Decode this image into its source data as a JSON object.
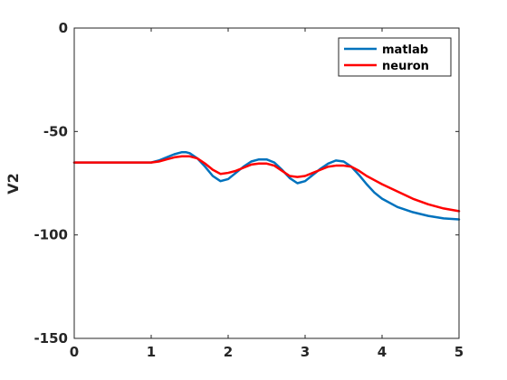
{
  "chart_data": {
    "type": "line",
    "title": "",
    "xlabel": "",
    "ylabel": "V2",
    "xlim": [
      0,
      5
    ],
    "ylim": [
      -150,
      0
    ],
    "xticks": [
      0,
      1,
      2,
      3,
      4,
      5
    ],
    "yticks": [
      -150,
      -100,
      -50,
      0
    ],
    "grid": false,
    "legend_position": "top-right",
    "series": [
      {
        "name": "matlab",
        "color": "#0072BD",
        "x": [
          0,
          0.5,
          1.0,
          1.1,
          1.2,
          1.3,
          1.4,
          1.45,
          1.5,
          1.6,
          1.7,
          1.8,
          1.9,
          2.0,
          2.1,
          2.2,
          2.3,
          2.4,
          2.5,
          2.6,
          2.7,
          2.8,
          2.9,
          3.0,
          3.1,
          3.2,
          3.3,
          3.4,
          3.5,
          3.6,
          3.7,
          3.8,
          3.9,
          4.0,
          4.2,
          4.4,
          4.6,
          4.8,
          5.0
        ],
        "y": [
          -65,
          -65,
          -65,
          -64,
          -62.5,
          -61,
          -60,
          -60,
          -60.5,
          -63,
          -67,
          -71.5,
          -74,
          -73,
          -70,
          -67,
          -64.5,
          -63.5,
          -63.5,
          -65,
          -68.5,
          -72.5,
          -75,
          -74,
          -71,
          -68,
          -65.5,
          -64,
          -64.5,
          -67,
          -71,
          -75.5,
          -79.5,
          -82.5,
          -86.5,
          -89,
          -90.8,
          -92,
          -92.5
        ]
      },
      {
        "name": "neuron",
        "color": "#FF0000",
        "x": [
          0,
          0.5,
          1.0,
          1.1,
          1.2,
          1.3,
          1.4,
          1.5,
          1.6,
          1.7,
          1.8,
          1.9,
          2.0,
          2.1,
          2.2,
          2.3,
          2.4,
          2.5,
          2.6,
          2.7,
          2.8,
          2.9,
          3.0,
          3.1,
          3.2,
          3.3,
          3.4,
          3.5,
          3.6,
          3.7,
          3.8,
          3.9,
          4.0,
          4.2,
          4.4,
          4.6,
          4.8,
          5.0
        ],
        "y": [
          -65,
          -65,
          -65,
          -64.5,
          -63.5,
          -62.5,
          -62,
          -62,
          -63,
          -65.5,
          -68.5,
          -70.5,
          -70,
          -69,
          -67.5,
          -66,
          -65.5,
          -65.5,
          -66.5,
          -69,
          -71.5,
          -72,
          -71.5,
          -70,
          -68.5,
          -67,
          -66.5,
          -66.5,
          -67,
          -69,
          -71.5,
          -73.5,
          -75.5,
          -79,
          -82.5,
          -85.2,
          -87.2,
          -88.5
        ]
      }
    ]
  }
}
